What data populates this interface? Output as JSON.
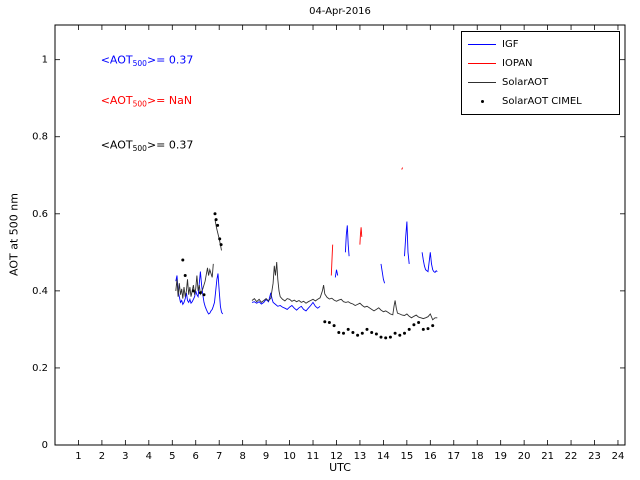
{
  "chart_data": {
    "type": "line",
    "title": "04-Apr-2016",
    "xlabel": "UTC",
    "ylabel": "AOT at 500 nm",
    "xlim": [
      0,
      24.3
    ],
    "ylim": [
      0,
      1.09
    ],
    "xticks": [
      1,
      2,
      3,
      4,
      5,
      6,
      7,
      8,
      9,
      10,
      11,
      12,
      13,
      14,
      15,
      16,
      17,
      18,
      19,
      20,
      21,
      22,
      23,
      24
    ],
    "yticks": [
      0,
      0.2,
      0.4,
      0.6,
      0.8,
      1
    ],
    "grid": false,
    "legend_position": "top-right",
    "series": [
      {
        "name": "IGF",
        "key": "igf",
        "color": "#0000ff",
        "type": "line",
        "segments": [
          [
            [
              5.15,
              0.425
            ],
            [
              5.2,
              0.44
            ],
            [
              5.25,
              0.4
            ],
            [
              5.3,
              0.385
            ],
            [
              5.35,
              0.37
            ],
            [
              5.4,
              0.375
            ],
            [
              5.45,
              0.365
            ],
            [
              5.5,
              0.37
            ],
            [
              5.55,
              0.38
            ],
            [
              5.6,
              0.395
            ],
            [
              5.65,
              0.375
            ],
            [
              5.7,
              0.37
            ],
            [
              5.75,
              0.378
            ],
            [
              5.8,
              0.368
            ],
            [
              5.85,
              0.372
            ],
            [
              5.9,
              0.378
            ],
            [
              5.95,
              0.385
            ],
            [
              6.0,
              0.4
            ],
            [
              6.05,
              0.39
            ],
            [
              6.1,
              0.385
            ],
            [
              6.15,
              0.42
            ],
            [
              6.2,
              0.45
            ],
            [
              6.25,
              0.415
            ],
            [
              6.3,
              0.39
            ],
            [
              6.35,
              0.37
            ],
            [
              6.4,
              0.36
            ],
            [
              6.45,
              0.352
            ],
            [
              6.5,
              0.345
            ],
            [
              6.55,
              0.34
            ],
            [
              6.6,
              0.342
            ],
            [
              6.65,
              0.348
            ],
            [
              6.7,
              0.352
            ],
            [
              6.75,
              0.36
            ],
            [
              6.8,
              0.37
            ],
            [
              6.85,
              0.4
            ],
            [
              6.9,
              0.43
            ],
            [
              6.95,
              0.445
            ],
            [
              7.0,
              0.4
            ],
            [
              7.05,
              0.36
            ],
            [
              7.1,
              0.345
            ],
            [
              7.15,
              0.34
            ]
          ],
          [
            [
              8.4,
              0.37
            ],
            [
              8.5,
              0.372
            ],
            [
              8.6,
              0.368
            ],
            [
              8.7,
              0.372
            ],
            [
              8.8,
              0.366
            ],
            [
              8.9,
              0.37
            ],
            [
              9.0,
              0.378
            ],
            [
              9.1,
              0.372
            ],
            [
              9.2,
              0.395
            ],
            [
              9.25,
              0.38
            ],
            [
              9.3,
              0.37
            ],
            [
              9.4,
              0.365
            ],
            [
              9.5,
              0.36
            ],
            [
              9.6,
              0.362
            ],
            [
              9.7,
              0.358
            ],
            [
              9.8,
              0.355
            ],
            [
              9.9,
              0.352
            ],
            [
              10.0,
              0.358
            ],
            [
              10.1,
              0.362
            ],
            [
              10.2,
              0.355
            ],
            [
              10.3,
              0.35
            ],
            [
              10.4,
              0.356
            ],
            [
              10.5,
              0.36
            ],
            [
              10.6,
              0.352
            ],
            [
              10.7,
              0.348
            ],
            [
              10.8,
              0.355
            ],
            [
              10.9,
              0.362
            ],
            [
              11.0,
              0.37
            ],
            [
              11.1,
              0.36
            ],
            [
              11.2,
              0.355
            ],
            [
              11.3,
              0.36
            ]
          ],
          [
            [
              11.95,
              0.435
            ],
            [
              12.0,
              0.455
            ],
            [
              12.05,
              0.44
            ]
          ],
          [
            [
              12.38,
              0.5
            ],
            [
              12.42,
              0.545
            ],
            [
              12.46,
              0.57
            ],
            [
              12.5,
              0.52
            ],
            [
              12.54,
              0.49
            ]
          ],
          [
            [
              13.9,
              0.47
            ],
            [
              13.95,
              0.45
            ],
            [
              14.0,
              0.43
            ],
            [
              14.05,
              0.42
            ]
          ],
          [
            [
              14.9,
              0.49
            ],
            [
              14.95,
              0.54
            ],
            [
              15.0,
              0.58
            ],
            [
              15.05,
              0.5
            ],
            [
              15.1,
              0.47
            ]
          ],
          [
            [
              15.65,
              0.5
            ],
            [
              15.7,
              0.48
            ],
            [
              15.75,
              0.465
            ],
            [
              15.8,
              0.455
            ],
            [
              15.9,
              0.45
            ],
            [
              16.0,
              0.5
            ],
            [
              16.05,
              0.47
            ],
            [
              16.1,
              0.455
            ],
            [
              16.15,
              0.45
            ],
            [
              16.2,
              0.448
            ],
            [
              16.25,
              0.452
            ],
            [
              16.3,
              0.45
            ]
          ]
        ]
      },
      {
        "name": "IOPAN",
        "key": "iopan",
        "color": "#ff0000",
        "type": "line",
        "segments": [
          [
            [
              11.78,
              0.44
            ],
            [
              11.8,
              0.47
            ],
            [
              11.82,
              0.5
            ],
            [
              11.84,
              0.52
            ]
          ],
          [
            [
              13.0,
              0.52
            ],
            [
              13.02,
              0.545
            ],
            [
              13.05,
              0.565
            ],
            [
              13.08,
              0.54
            ]
          ],
          [
            [
              14.78,
              0.715
            ],
            [
              14.82,
              0.72
            ]
          ]
        ]
      },
      {
        "name": "SolarAOT",
        "key": "solaraot",
        "color": "#303030",
        "type": "line",
        "segments": [
          [
            [
              5.15,
              0.4
            ],
            [
              5.2,
              0.43
            ],
            [
              5.25,
              0.385
            ],
            [
              5.3,
              0.42
            ],
            [
              5.35,
              0.39
            ],
            [
              5.4,
              0.405
            ],
            [
              5.45,
              0.38
            ],
            [
              5.5,
              0.41
            ],
            [
              5.55,
              0.385
            ],
            [
              5.6,
              0.4
            ],
            [
              5.65,
              0.43
            ],
            [
              5.7,
              0.39
            ],
            [
              5.75,
              0.41
            ],
            [
              5.8,
              0.385
            ],
            [
              5.85,
              0.4
            ],
            [
              5.9,
              0.415
            ],
            [
              5.95,
              0.39
            ],
            [
              6.0,
              0.405
            ],
            [
              6.05,
              0.44
            ],
            [
              6.1,
              0.4
            ],
            [
              6.15,
              0.415
            ],
            [
              6.2,
              0.392
            ],
            [
              6.3,
              0.405
            ],
            [
              6.4,
              0.425
            ],
            [
              6.5,
              0.46
            ],
            [
              6.55,
              0.44
            ],
            [
              6.6,
              0.455
            ],
            [
              6.7,
              0.435
            ],
            [
              6.75,
              0.47
            ]
          ],
          [
            [
              6.82,
              0.585
            ],
            [
              6.88,
              0.565
            ],
            [
              6.94,
              0.55
            ],
            [
              7.0,
              0.535
            ],
            [
              7.05,
              0.52
            ],
            [
              7.1,
              0.505
            ]
          ],
          [
            [
              8.4,
              0.375
            ],
            [
              8.5,
              0.38
            ],
            [
              8.6,
              0.372
            ],
            [
              8.7,
              0.378
            ],
            [
              8.8,
              0.37
            ],
            [
              8.9,
              0.375
            ],
            [
              9.0,
              0.38
            ],
            [
              9.1,
              0.374
            ],
            [
              9.2,
              0.381
            ],
            [
              9.3,
              0.42
            ],
            [
              9.35,
              0.465
            ],
            [
              9.4,
              0.44
            ],
            [
              9.45,
              0.475
            ],
            [
              9.5,
              0.43
            ],
            [
              9.55,
              0.4
            ],
            [
              9.6,
              0.385
            ],
            [
              9.7,
              0.378
            ],
            [
              9.8,
              0.374
            ],
            [
              9.9,
              0.38
            ],
            [
              10.0,
              0.378
            ],
            [
              10.1,
              0.373
            ],
            [
              10.2,
              0.376
            ],
            [
              10.3,
              0.372
            ],
            [
              10.4,
              0.375
            ],
            [
              10.5,
              0.37
            ],
            [
              10.6,
              0.373
            ],
            [
              10.7,
              0.368
            ],
            [
              10.8,
              0.372
            ],
            [
              10.9,
              0.375
            ],
            [
              11.0,
              0.378
            ],
            [
              11.1,
              0.374
            ],
            [
              11.2,
              0.378
            ],
            [
              11.3,
              0.382
            ],
            [
              11.4,
              0.4
            ],
            [
              11.45,
              0.415
            ],
            [
              11.5,
              0.392
            ],
            [
              11.6,
              0.383
            ],
            [
              11.7,
              0.379
            ],
            [
              11.8,
              0.381
            ],
            [
              11.9,
              0.376
            ],
            [
              12.0,
              0.373
            ],
            [
              12.1,
              0.376
            ],
            [
              12.2,
              0.378
            ],
            [
              12.3,
              0.372
            ],
            [
              12.4,
              0.37
            ],
            [
              12.5,
              0.372
            ],
            [
              12.6,
              0.368
            ],
            [
              12.7,
              0.366
            ],
            [
              12.8,
              0.362
            ],
            [
              12.9,
              0.365
            ],
            [
              13.0,
              0.368
            ],
            [
              13.1,
              0.362
            ],
            [
              13.2,
              0.358
            ],
            [
              13.3,
              0.36
            ],
            [
              13.4,
              0.356
            ],
            [
              13.5,
              0.352
            ],
            [
              13.6,
              0.348
            ],
            [
              13.7,
              0.352
            ],
            [
              13.8,
              0.356
            ],
            [
              13.9,
              0.35
            ],
            [
              14.0,
              0.346
            ],
            [
              14.1,
              0.348
            ],
            [
              14.2,
              0.344
            ],
            [
              14.3,
              0.34
            ],
            [
              14.4,
              0.338
            ],
            [
              14.45,
              0.36
            ],
            [
              14.5,
              0.375
            ],
            [
              14.55,
              0.355
            ],
            [
              14.6,
              0.342
            ],
            [
              14.7,
              0.34
            ],
            [
              14.8,
              0.337
            ],
            [
              14.9,
              0.336
            ],
            [
              15.0,
              0.34
            ],
            [
              15.1,
              0.334
            ],
            [
              15.2,
              0.33
            ],
            [
              15.3,
              0.334
            ],
            [
              15.4,
              0.337
            ],
            [
              15.5,
              0.332
            ],
            [
              15.6,
              0.33
            ],
            [
              15.7,
              0.328
            ],
            [
              15.8,
              0.33
            ],
            [
              15.9,
              0.333
            ],
            [
              16.0,
              0.34
            ],
            [
              16.1,
              0.325
            ],
            [
              16.2,
              0.33
            ],
            [
              16.3,
              0.33
            ]
          ]
        ]
      },
      {
        "name": "SolarAOT CIMEL",
        "key": "cimel",
        "color": "#000000",
        "type": "scatter",
        "points": [
          [
            5.45,
            0.48
          ],
          [
            5.55,
            0.44
          ],
          [
            5.9,
            0.4
          ],
          [
            6.2,
            0.395
          ],
          [
            6.35,
            0.39
          ],
          [
            6.82,
            0.6
          ],
          [
            6.87,
            0.585
          ],
          [
            6.93,
            0.57
          ],
          [
            7.02,
            0.535
          ],
          [
            7.08,
            0.52
          ],
          [
            11.5,
            0.32
          ],
          [
            11.7,
            0.318
          ],
          [
            11.9,
            0.31
          ],
          [
            12.1,
            0.292
          ],
          [
            12.3,
            0.29
          ],
          [
            12.5,
            0.3
          ],
          [
            12.7,
            0.292
          ],
          [
            12.9,
            0.285
          ],
          [
            13.1,
            0.29
          ],
          [
            13.3,
            0.3
          ],
          [
            13.5,
            0.292
          ],
          [
            13.7,
            0.288
          ],
          [
            13.9,
            0.28
          ],
          [
            14.1,
            0.278
          ],
          [
            14.3,
            0.28
          ],
          [
            14.5,
            0.29
          ],
          [
            14.7,
            0.285
          ],
          [
            14.9,
            0.29
          ],
          [
            15.1,
            0.3
          ],
          [
            15.3,
            0.312
          ],
          [
            15.5,
            0.318
          ],
          [
            15.7,
            0.3
          ],
          [
            15.9,
            0.302
          ],
          [
            16.1,
            0.31
          ]
        ]
      }
    ],
    "annotations": [
      {
        "prefix": "<AOT",
        "sub": "500",
        "suffix": ">= 0.37",
        "color": "#0000ff",
        "x": 1.95,
        "y": 0.99
      },
      {
        "prefix": "<AOT",
        "sub": "500",
        "suffix": ">=  NaN",
        "color": "#ff0000",
        "x": 1.95,
        "y": 0.885
      },
      {
        "prefix": "<AOT",
        "sub": "500",
        "suffix": ">= 0.37",
        "color": "#000000",
        "x": 1.95,
        "y": 0.77
      }
    ]
  }
}
